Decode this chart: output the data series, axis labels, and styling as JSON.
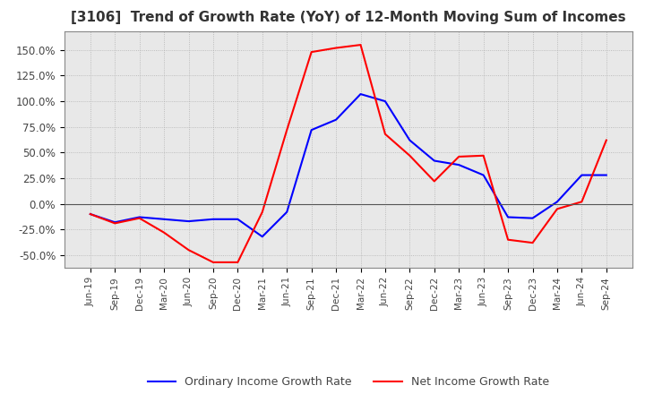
{
  "title": "[3106]  Trend of Growth Rate (YoY) of 12-Month Moving Sum of Incomes",
  "title_fontsize": 11,
  "ylim": [
    -62.5,
    168.0
  ],
  "yticks": [
    -50.0,
    -25.0,
    0.0,
    25.0,
    50.0,
    75.0,
    100.0,
    125.0,
    150.0
  ],
  "ytick_labels": [
    "-50.0%",
    "-25.0%",
    "0.0%",
    "25.0%",
    "50.0%",
    "75.0%",
    "100.0%",
    "125.0%",
    "150.0%"
  ],
  "ordinary_color": "#0000FF",
  "net_color": "#FF0000",
  "background_color": "#FFFFFF",
  "grid_color": "#AAAAAA",
  "plot_bg_color": "#E8E8E8",
  "legend_ordinary": "Ordinary Income Growth Rate",
  "legend_net": "Net Income Growth Rate",
  "dates": [
    "Jun-19",
    "Sep-19",
    "Dec-19",
    "Mar-20",
    "Jun-20",
    "Sep-20",
    "Dec-20",
    "Mar-21",
    "Jun-21",
    "Sep-21",
    "Dec-21",
    "Mar-22",
    "Jun-22",
    "Sep-22",
    "Dec-22",
    "Mar-23",
    "Jun-23",
    "Sep-23",
    "Dec-23",
    "Mar-24",
    "Jun-24",
    "Sep-24"
  ],
  "ordinary_income": [
    -10.0,
    -18.0,
    -13.0,
    -15.0,
    -17.0,
    -15.0,
    -15.0,
    -32.0,
    -8.0,
    72.0,
    82.0,
    107.0,
    100.0,
    62.0,
    42.0,
    38.0,
    28.0,
    -13.0,
    -14.0,
    2.0,
    28.0,
    28.0
  ],
  "net_income": [
    -10.0,
    -19.0,
    -14.0,
    -28.0,
    -45.0,
    -57.0,
    -57.0,
    -8.0,
    72.0,
    148.0,
    152.0,
    155.0,
    68.0,
    47.0,
    22.0,
    46.0,
    47.0,
    -35.0,
    -38.0,
    -5.0,
    2.0,
    62.0
  ]
}
